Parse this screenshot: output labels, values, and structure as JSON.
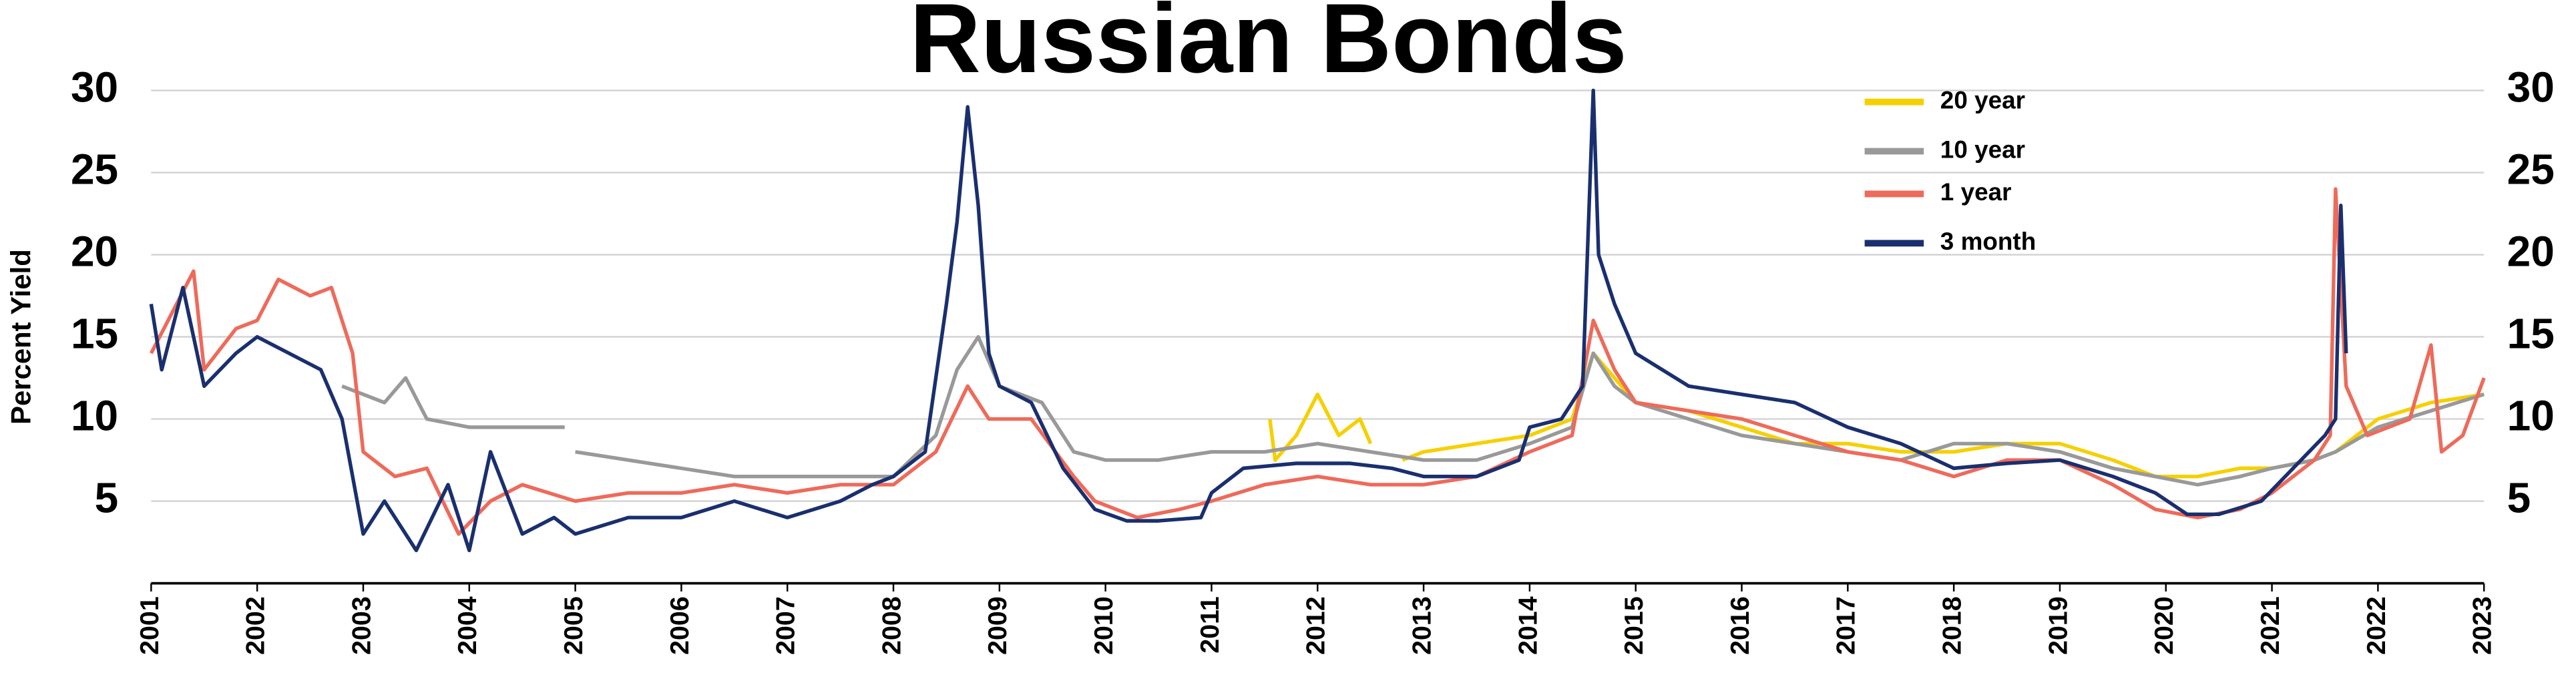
{
  "chart_data": {
    "type": "line",
    "title": "Russian Bonds",
    "ylabel": "Percent Yield",
    "xlim": [
      2001,
      2023
    ],
    "xticks": [
      2001,
      2002,
      2003,
      2004,
      2005,
      2006,
      2007,
      2008,
      2009,
      2010,
      2011,
      2012,
      2013,
      2014,
      2015,
      2016,
      2017,
      2018,
      2019,
      2020,
      2021,
      2022,
      2023
    ],
    "ylim": [
      0,
      30
    ],
    "yticks": [
      5,
      10,
      15,
      20,
      25,
      30
    ],
    "grid": true,
    "legend_position": "top-right",
    "series": [
      {
        "name": "20 year",
        "color": "#f5d000",
        "x": [
          2011.55,
          2011.6,
          2011.8,
          2012.0,
          2012.2,
          2012.4,
          2012.5,
          2012.65,
          2012.8,
          2013.0,
          2013.5,
          2014.0,
          2014.4,
          2014.6,
          2014.8,
          2015.0,
          2015.5,
          2016.0,
          2016.5,
          2017.0,
          2017.5,
          2018.0,
          2018.5,
          2019.0,
          2019.5,
          2019.9,
          2020.3,
          2020.7,
          2021.0,
          2021.4,
          2021.6,
          2022.0,
          2022.5,
          2023.0
        ],
        "values": [
          10,
          7.5,
          9,
          11.5,
          9,
          10,
          8.5,
          null,
          7.5,
          8,
          8.5,
          9,
          10,
          14,
          12.5,
          11,
          10.5,
          9.5,
          8.5,
          8.5,
          8,
          8,
          8.5,
          8.5,
          7.5,
          6.5,
          6.5,
          7,
          7,
          7.5,
          8,
          10,
          11,
          11.5
        ]
      },
      {
        "name": "10 year",
        "color": "#999999",
        "x": [
          2002.8,
          2003.2,
          2003.4,
          2003.6,
          2004.0,
          2004.5,
          2004.9,
          2004.95,
          2005.0,
          2005.5,
          2006.0,
          2006.5,
          2007.0,
          2007.5,
          2008.0,
          2008.4,
          2008.6,
          2008.8,
          2009.0,
          2009.4,
          2009.7,
          2010.0,
          2010.5,
          2011.0,
          2011.5,
          2012.0,
          2012.5,
          2013.0,
          2013.5,
          2014.0,
          2014.4,
          2014.6,
          2014.8,
          2015.0,
          2015.5,
          2016.0,
          2016.5,
          2017.0,
          2017.5,
          2018.0,
          2018.5,
          2019.0,
          2019.5,
          2019.9,
          2020.3,
          2020.7,
          2021.0,
          2021.4,
          2021.6,
          2022.0,
          2022.5,
          2023.0
        ],
        "values": [
          12,
          11,
          12.5,
          10,
          9.5,
          9.5,
          9.5,
          null,
          8,
          7.5,
          7,
          6.5,
          6.5,
          6.5,
          6.5,
          9,
          13,
          15,
          12,
          11,
          8,
          7.5,
          7.5,
          8,
          8,
          8.5,
          8,
          7.5,
          7.5,
          8.5,
          9.5,
          14,
          12,
          11,
          10,
          9,
          8.5,
          8,
          7.5,
          8.5,
          8.5,
          8,
          7,
          6.5,
          6,
          6.5,
          7,
          7.5,
          8,
          9.5,
          10.5,
          11.5
        ]
      },
      {
        "name": "1 year",
        "color": "#ee6a5a",
        "x": [
          2001.0,
          2001.4,
          2001.5,
          2001.8,
          2002.0,
          2002.2,
          2002.5,
          2002.7,
          2002.9,
          2003.0,
          2003.3,
          2003.6,
          2003.9,
          2004.2,
          2004.5,
          2005.0,
          2005.5,
          2006.0,
          2006.5,
          2007.0,
          2007.5,
          2008.0,
          2008.4,
          2008.7,
          2008.9,
          2009.3,
          2009.7,
          2009.9,
          2010.3,
          2010.7,
          2011.0,
          2011.5,
          2012.0,
          2012.5,
          2013.0,
          2013.5,
          2014.0,
          2014.4,
          2014.6,
          2014.8,
          2015.0,
          2015.5,
          2016.0,
          2016.5,
          2017.0,
          2017.5,
          2018.0,
          2018.5,
          2019.0,
          2019.5,
          2019.9,
          2020.3,
          2020.7,
          2021.0,
          2021.4,
          2021.55,
          2021.6,
          2021.7,
          2021.9,
          2022.3,
          2022.5,
          2022.6,
          2022.8,
          2023.0
        ],
        "values": [
          14,
          19,
          13,
          15.5,
          16,
          18.5,
          17.5,
          18,
          14,
          8,
          6.5,
          7,
          3,
          5,
          6,
          5,
          5.5,
          5.5,
          6,
          5.5,
          6,
          6,
          8,
          12,
          10,
          10,
          6.5,
          5,
          4,
          4.5,
          5,
          6,
          6.5,
          6,
          6,
          6.5,
          8,
          9,
          16,
          13,
          11,
          10.5,
          10,
          9,
          8,
          7.5,
          6.5,
          7.5,
          7.5,
          6,
          4.5,
          4,
          4.5,
          5.5,
          7.5,
          9,
          24,
          12,
          9,
          10,
          14.5,
          8,
          9,
          12.5
        ]
      },
      {
        "name": "3 month",
        "color": "#1a2f6e",
        "x": [
          2001.0,
          2001.1,
          2001.3,
          2001.5,
          2001.8,
          2002.0,
          2002.3,
          2002.6,
          2002.8,
          2003.0,
          2003.2,
          2003.5,
          2003.8,
          2004.0,
          2004.2,
          2004.5,
          2004.8,
          2005.0,
          2005.5,
          2006.0,
          2006.5,
          2007.0,
          2007.5,
          2007.8,
          2008.0,
          2008.3,
          2008.5,
          2008.6,
          2008.7,
          2008.8,
          2008.9,
          2009.0,
          2009.3,
          2009.6,
          2009.9,
          2010.2,
          2010.5,
          2010.9,
          2011.0,
          2011.3,
          2011.8,
          2012.3,
          2012.7,
          2013.0,
          2013.5,
          2013.9,
          2014.0,
          2014.3,
          2014.5,
          2014.6,
          2014.65,
          2014.8,
          2015.0,
          2015.5,
          2016.0,
          2016.5,
          2017.0,
          2017.5,
          2018.0,
          2018.5,
          2019.0,
          2019.5,
          2019.9,
          2020.2,
          2020.5,
          2020.9,
          2021.2,
          2021.5,
          2021.6,
          2021.65,
          2021.7
        ],
        "values": [
          17,
          13,
          18,
          12,
          14,
          15,
          14,
          13,
          10,
          3,
          5,
          2,
          6,
          2,
          8,
          3,
          4,
          3,
          4,
          4,
          5,
          4,
          5,
          6,
          6.5,
          8,
          17,
          22,
          29,
          23,
          14,
          12,
          11,
          7,
          4.5,
          3.8,
          3.8,
          4,
          5.5,
          7,
          7.3,
          7.3,
          7,
          6.5,
          6.5,
          7.5,
          9.5,
          10,
          12,
          30,
          20,
          17,
          14,
          12,
          11.5,
          11,
          9.5,
          8.5,
          7,
          7.3,
          7.5,
          6.5,
          5.5,
          4.2,
          4.2,
          5,
          7,
          9,
          10,
          23,
          14
        ]
      }
    ]
  }
}
